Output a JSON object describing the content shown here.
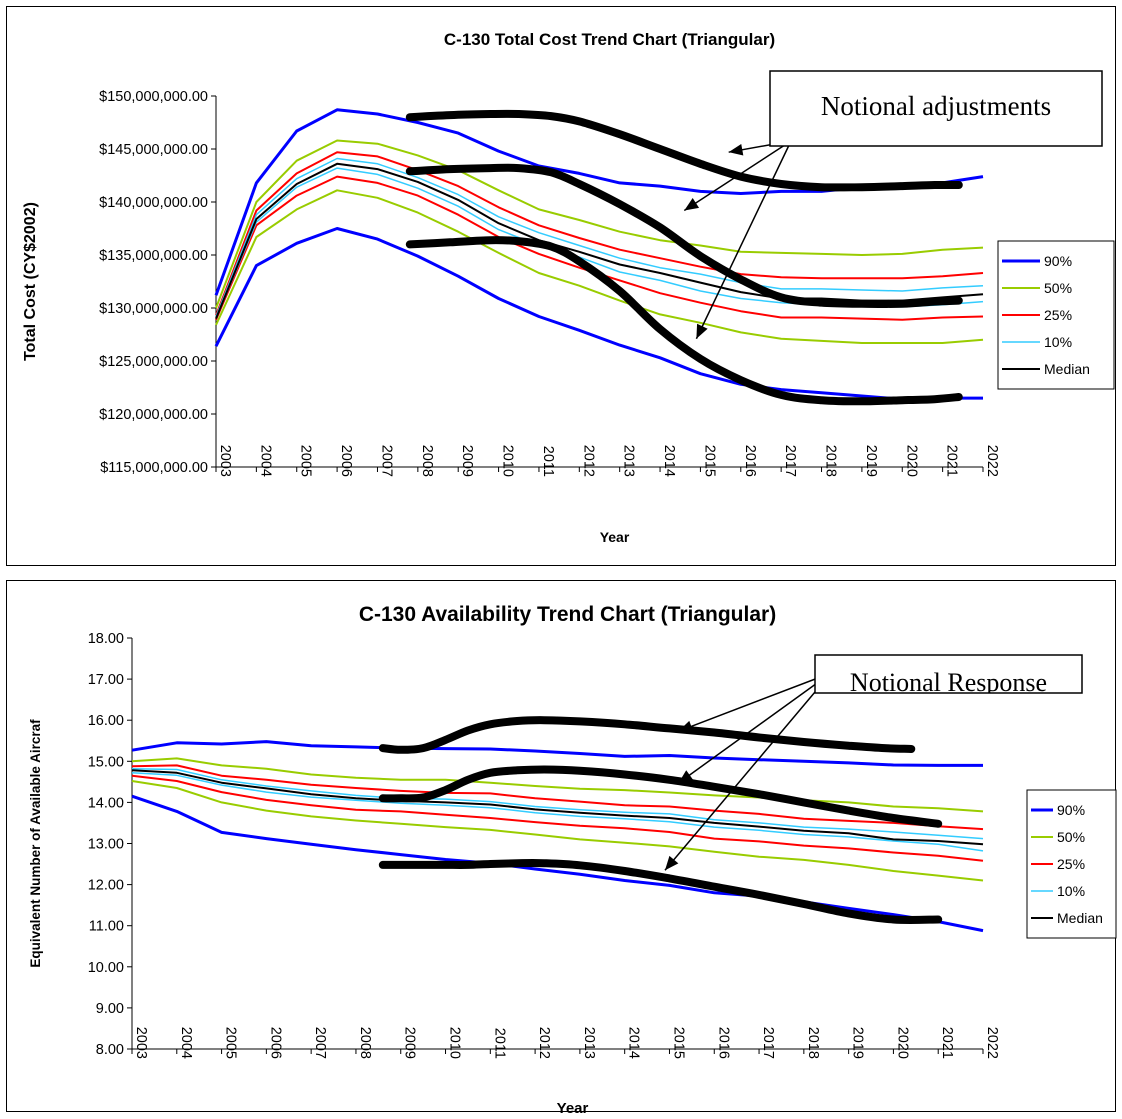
{
  "chart_data": [
    {
      "type": "line",
      "title": "C-130 Total Cost Trend Chart (Triangular)",
      "xlabel": "Year",
      "ylabel": "Total Cost (CY$2002)",
      "ylim": [
        115000000,
        150000000
      ],
      "ytick_values": [
        115000000,
        120000000,
        125000000,
        130000000,
        135000000,
        140000000,
        145000000,
        150000000
      ],
      "ytick_labels": [
        "$115,000,000.00",
        "$120,000,000.00",
        "$125,000,000.00",
        "$130,000,000.00",
        "$135,000,000.00",
        "$140,000,000.00",
        "$145,000,000.00",
        "$150,000,000.00"
      ],
      "categories": [
        "2003",
        "2004",
        "2005",
        "2006",
        "2007",
        "2008",
        "2009",
        "2010",
        "2011",
        "2012",
        "2013",
        "2014",
        "2015",
        "2016",
        "2017",
        "2018",
        "2019",
        "2020",
        "2021",
        "2022"
      ],
      "grid": false,
      "legend_position": "right",
      "legend": [
        "90%",
        "50%",
        "25%",
        "10%",
        "Median"
      ],
      "series": [
        {
          "name": "90%",
          "color": "#0000FF",
          "width": 3,
          "in_legend": true,
          "values": [
            131200000,
            141800000,
            146700000,
            148700000,
            148300000,
            147500000,
            146500000,
            144800000,
            143400000,
            142700000,
            141800000,
            141500000,
            141000000,
            140800000,
            141000000,
            141000000,
            141400000,
            141500000,
            141800000,
            142400000
          ]
        },
        {
          "name": "90%",
          "color": "#0000FF",
          "width": 3,
          "in_legend": false,
          "values": [
            126400000,
            134000000,
            136100000,
            137500000,
            136500000,
            134900000,
            133000000,
            130900000,
            129200000,
            127900000,
            126500000,
            125300000,
            123800000,
            122800000,
            122300000,
            122000000,
            121700000,
            121400000,
            121500000,
            121500000
          ]
        },
        {
          "name": "50%",
          "color": "#99CC00",
          "width": 2,
          "in_legend": true,
          "values": [
            130000000,
            140000000,
            143900000,
            145800000,
            145500000,
            144400000,
            143000000,
            141100000,
            139300000,
            138300000,
            137200000,
            136400000,
            135900000,
            135300000,
            135200000,
            135100000,
            135000000,
            135100000,
            135500000,
            135700000
          ]
        },
        {
          "name": "50%",
          "color": "#99CC00",
          "width": 2,
          "in_legend": false,
          "values": [
            128400000,
            136700000,
            139300000,
            141100000,
            140400000,
            139000000,
            137200000,
            135200000,
            133300000,
            132100000,
            130700000,
            129400000,
            128600000,
            127700000,
            127100000,
            126900000,
            126700000,
            126700000,
            126700000,
            127000000
          ]
        },
        {
          "name": "25%",
          "color": "#FF0000",
          "width": 2,
          "in_legend": true,
          "values": [
            129300000,
            139200000,
            142700000,
            144700000,
            144300000,
            143000000,
            141500000,
            139500000,
            137800000,
            136600000,
            135500000,
            134700000,
            133900000,
            133200000,
            132900000,
            132800000,
            132800000,
            132800000,
            133000000,
            133300000
          ]
        },
        {
          "name": "25%",
          "color": "#FF0000",
          "width": 2,
          "in_legend": false,
          "values": [
            128900000,
            137800000,
            140600000,
            142400000,
            141800000,
            140600000,
            138800000,
            136700000,
            135100000,
            133800000,
            132600000,
            131400000,
            130500000,
            129700000,
            129100000,
            129100000,
            129000000,
            128900000,
            129100000,
            129200000
          ]
        },
        {
          "name": "10%",
          "color": "#33CCFF",
          "width": 1.5,
          "in_legend": true,
          "values": [
            129200000,
            138800000,
            142200000,
            144100000,
            143600000,
            142300000,
            140700000,
            138600000,
            137100000,
            135900000,
            134700000,
            133800000,
            133200000,
            132400000,
            131800000,
            131800000,
            131700000,
            131600000,
            131900000,
            132100000
          ]
        },
        {
          "name": "10%",
          "color": "#33CCFF",
          "width": 1.5,
          "in_legend": false,
          "values": [
            129000000,
            138100000,
            141400000,
            143200000,
            142600000,
            141300000,
            139600000,
            137400000,
            135900000,
            134800000,
            133400000,
            132600000,
            131600000,
            130900000,
            130500000,
            130300000,
            130200000,
            130100000,
            130300000,
            130600000
          ]
        },
        {
          "name": "Median",
          "color": "#000000",
          "width": 2,
          "in_legend": true,
          "values": [
            129000000,
            138400000,
            141700000,
            143600000,
            143100000,
            141900000,
            140200000,
            138000000,
            136400000,
            135300000,
            134100000,
            133300000,
            132400000,
            131500000,
            130900000,
            130900000,
            130700000,
            130700000,
            131000000,
            131300000
          ]
        }
      ],
      "overlays": [
        {
          "x": [
            2007.8,
            2008.8,
            2009.8,
            2010.5,
            2011.3,
            2012.0,
            2013.0,
            2014.0,
            2015.0,
            2016.0,
            2017.0,
            2018.0,
            2019.0,
            2020.0,
            2020.8,
            2021.4
          ],
          "y": [
            148000000,
            148200000,
            148300000,
            148300000,
            148100000,
            147600000,
            146400000,
            145000000,
            143600000,
            142400000,
            141700000,
            141400000,
            141400000,
            141500000,
            141600000,
            141600000
          ]
        },
        {
          "x": [
            2007.8,
            2008.8,
            2009.8,
            2010.5,
            2011.3,
            2012.0,
            2013.0,
            2014.0,
            2015.0,
            2016.0,
            2017.0,
            2018.0,
            2019.0,
            2020.0,
            2020.8,
            2021.4
          ],
          "y": [
            142900000,
            143100000,
            143200000,
            143200000,
            142800000,
            141700000,
            139800000,
            137600000,
            134900000,
            132700000,
            131000000,
            130500000,
            130400000,
            130400000,
            130600000,
            130700000
          ]
        },
        {
          "x": [
            2007.8,
            2008.8,
            2009.8,
            2010.5,
            2011.3,
            2012.0,
            2013.0,
            2014.0,
            2015.0,
            2016.0,
            2017.0,
            2018.0,
            2019.0,
            2020.0,
            2020.8,
            2021.4
          ],
          "y": [
            136000000,
            136200000,
            136400000,
            136300000,
            135800000,
            134400000,
            131600000,
            128000000,
            125200000,
            123200000,
            121800000,
            121300000,
            121200000,
            121300000,
            121400000,
            121600000
          ]
        }
      ],
      "callout": {
        "text": "Notional adjustments",
        "arrow_targets": [
          [
            2015.7,
            144700000
          ],
          [
            2014.6,
            139200000
          ],
          [
            2014.9,
            127100000
          ]
        ]
      }
    },
    {
      "type": "line",
      "title": "C-130 Availability Trend Chart (Triangular)",
      "xlabel": "Year",
      "ylabel": "Equivalent Number of Available Aircraf",
      "ylim": [
        8,
        18
      ],
      "ytick_values": [
        8,
        9,
        10,
        11,
        12,
        13,
        14,
        15,
        16,
        17,
        18
      ],
      "ytick_labels": [
        "8.00",
        "9.00",
        "10.00",
        "11.00",
        "12.00",
        "13.00",
        "14.00",
        "15.00",
        "16.00",
        "17.00",
        "18.00"
      ],
      "categories": [
        "2003",
        "2004",
        "2005",
        "2006",
        "2007",
        "2008",
        "2009",
        "2010",
        "2011",
        "2012",
        "2013",
        "2014",
        "2015",
        "2016",
        "2017",
        "2018",
        "2019",
        "2020",
        "2021",
        "2022"
      ],
      "grid": false,
      "legend_position": "right",
      "legend": [
        "90%",
        "50%",
        "25%",
        "10%",
        "Median"
      ],
      "series": [
        {
          "name": "90%",
          "color": "#0000FF",
          "width": 3,
          "in_legend": true,
          "values": [
            15.27,
            15.45,
            15.42,
            15.48,
            15.38,
            15.35,
            15.32,
            15.31,
            15.3,
            15.25,
            15.19,
            15.12,
            15.14,
            15.08,
            15.04,
            15.0,
            14.96,
            14.91,
            14.9,
            14.9
          ]
        },
        {
          "name": "90%",
          "color": "#0000FF",
          "width": 3,
          "in_legend": false,
          "values": [
            14.15,
            13.78,
            13.27,
            13.12,
            12.98,
            12.85,
            12.73,
            12.61,
            12.52,
            12.38,
            12.25,
            12.1,
            11.98,
            11.8,
            11.72,
            11.58,
            11.42,
            11.27,
            11.1,
            10.88
          ]
        },
        {
          "name": "50%",
          "color": "#99CC00",
          "width": 2,
          "in_legend": true,
          "values": [
            15.0,
            15.07,
            14.9,
            14.82,
            14.68,
            14.6,
            14.55,
            14.55,
            14.48,
            14.4,
            14.33,
            14.3,
            14.24,
            14.17,
            14.12,
            14.05,
            14.0,
            13.9,
            13.86,
            13.78
          ]
        },
        {
          "name": "50%",
          "color": "#99CC00",
          "width": 2,
          "in_legend": false,
          "values": [
            14.52,
            14.35,
            14.0,
            13.8,
            13.66,
            13.56,
            13.48,
            13.4,
            13.33,
            13.22,
            13.1,
            13.02,
            12.93,
            12.8,
            12.68,
            12.6,
            12.48,
            12.33,
            12.22,
            12.1
          ]
        },
        {
          "name": "25%",
          "color": "#FF0000",
          "width": 2,
          "in_legend": true,
          "values": [
            14.88,
            14.9,
            14.65,
            14.55,
            14.43,
            14.35,
            14.28,
            14.23,
            14.22,
            14.1,
            14.02,
            13.93,
            13.9,
            13.8,
            13.72,
            13.6,
            13.55,
            13.5,
            13.42,
            13.35
          ]
        },
        {
          "name": "25%",
          "color": "#FF0000",
          "width": 2,
          "in_legend": false,
          "values": [
            14.65,
            14.52,
            14.25,
            14.06,
            13.93,
            13.82,
            13.78,
            13.7,
            13.62,
            13.52,
            13.43,
            13.37,
            13.28,
            13.12,
            13.05,
            12.95,
            12.88,
            12.78,
            12.7,
            12.58
          ]
        },
        {
          "name": "10%",
          "color": "#33CCFF",
          "width": 1.5,
          "in_legend": true,
          "values": [
            14.82,
            14.8,
            14.55,
            14.4,
            14.28,
            14.17,
            14.1,
            14.08,
            14.02,
            13.9,
            13.82,
            13.76,
            13.72,
            13.58,
            13.5,
            13.4,
            13.35,
            13.28,
            13.2,
            13.12
          ]
        },
        {
          "name": "10%",
          "color": "#33CCFF",
          "width": 1.5,
          "in_legend": false,
          "values": [
            14.72,
            14.66,
            14.42,
            14.25,
            14.13,
            14.05,
            13.98,
            13.93,
            13.87,
            13.75,
            13.66,
            13.6,
            13.53,
            13.4,
            13.32,
            13.22,
            13.16,
            13.06,
            12.98,
            12.82
          ]
        },
        {
          "name": "Median",
          "color": "#000000",
          "width": 2,
          "in_legend": true,
          "values": [
            14.78,
            14.72,
            14.48,
            14.34,
            14.2,
            14.1,
            14.04,
            14.0,
            13.95,
            13.83,
            13.75,
            13.68,
            13.62,
            13.5,
            13.41,
            13.31,
            13.25,
            13.1,
            13.06,
            12.98
          ]
        }
      ],
      "overlays": [
        {
          "x": [
            2008.6,
            2009.0,
            2009.5,
            2010.0,
            2010.5,
            2011.0,
            2011.6,
            2012.2,
            2013.0,
            2014.0,
            2015.0,
            2016.0,
            2017.0,
            2018.0,
            2019.0,
            2019.8,
            2020.4
          ],
          "y": [
            15.32,
            15.28,
            15.32,
            15.52,
            15.75,
            15.9,
            15.98,
            16.0,
            15.97,
            15.9,
            15.8,
            15.7,
            15.58,
            15.47,
            15.38,
            15.32,
            15.3
          ]
        },
        {
          "x": [
            2008.6,
            2009.0,
            2009.5,
            2010.0,
            2010.5,
            2011.0,
            2011.6,
            2012.2,
            2013.0,
            2014.0,
            2015.0,
            2016.0,
            2017.0,
            2018.0,
            2019.0,
            2020.0,
            2021.0
          ],
          "y": [
            14.1,
            14.1,
            14.12,
            14.3,
            14.55,
            14.72,
            14.78,
            14.8,
            14.77,
            14.68,
            14.55,
            14.38,
            14.2,
            14.0,
            13.8,
            13.62,
            13.48
          ]
        },
        {
          "x": [
            2008.6,
            2009.0,
            2009.5,
            2010.0,
            2010.5,
            2011.0,
            2011.6,
            2012.2,
            2013.0,
            2014.0,
            2015.0,
            2016.0,
            2017.0,
            2018.0,
            2019.0,
            2020.0,
            2021.0
          ],
          "y": [
            12.48,
            12.48,
            12.48,
            12.48,
            12.48,
            12.5,
            12.52,
            12.52,
            12.47,
            12.33,
            12.15,
            11.95,
            11.75,
            11.53,
            11.3,
            11.15,
            11.15
          ]
        }
      ],
      "callout": {
        "text": "Notional Response",
        "arrow_targets": [
          [
            2015.2,
            15.73
          ],
          [
            2015.2,
            14.47
          ],
          [
            2014.9,
            12.35
          ]
        ]
      }
    }
  ]
}
